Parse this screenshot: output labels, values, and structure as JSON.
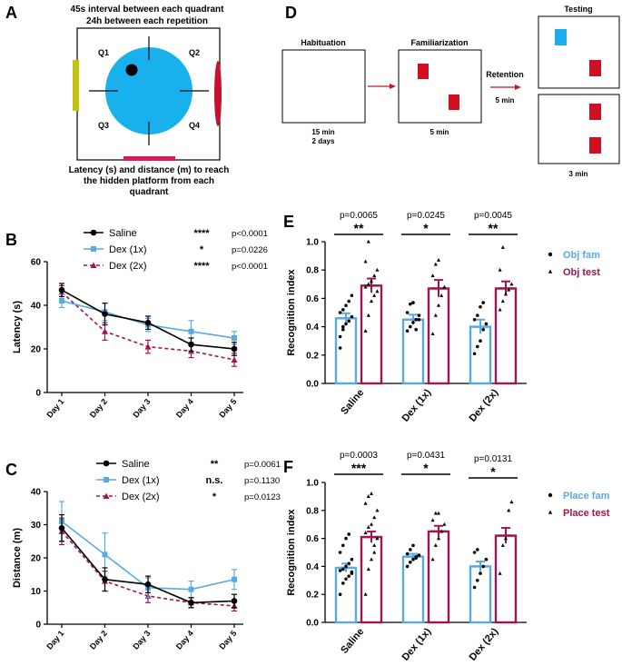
{
  "colors": {
    "saline": "#000000",
    "dex1": "#5aa9e6",
    "dex2": "#a0154f",
    "pool": "#19b0ee",
    "platform": "#000000",
    "cue_left": "#c2c40f",
    "cue_right": "#c8102e",
    "cue_bottom": "#d81b60",
    "object": "#d01020",
    "novel_object": "#1aaeee",
    "arrow": "#d01020"
  },
  "panelA": {
    "letter": "A",
    "title1": "45s interval between each quadrant",
    "title2": "24h between each repetition",
    "quadrants": [
      "Q1",
      "Q2",
      "Q3",
      "Q4"
    ],
    "caption1": "Latency (s) and distance (m) to reach",
    "caption2": "the hidden platform from each",
    "caption3": "quadrant"
  },
  "panelD": {
    "letter": "D",
    "habituation": "Habituation",
    "habituation_time1": "15 min",
    "habituation_time2": "2 days",
    "familiarization": "Familiarization",
    "familiarization_time": "5 min",
    "retention": "Retention",
    "retention_time": "5 min",
    "testing": "Testing",
    "testing_time": "3 min"
  },
  "chart_data": [
    {
      "id": "B",
      "letter": "B",
      "type": "line",
      "ylabel": "Latency (s)",
      "ylim": [
        0,
        60
      ],
      "yticks": [
        0,
        20,
        40,
        60
      ],
      "categories": [
        "Day 1",
        "Day 2",
        "Day 3",
        "Day 4",
        "Day 5"
      ],
      "series": [
        {
          "name": "Saline",
          "key": "saline",
          "values": [
            47,
            36,
            32,
            22,
            20
          ],
          "err": [
            3,
            5,
            3,
            3,
            3
          ]
        },
        {
          "name": "Dex (1x)",
          "key": "dex1",
          "values": [
            42,
            37,
            31,
            28,
            25
          ],
          "err": [
            3,
            4,
            3,
            5,
            3
          ]
        },
        {
          "name": "Dex (2x)",
          "key": "dex2",
          "values": [
            46,
            28,
            21,
            19,
            15
          ],
          "err": [
            3,
            4,
            3,
            3,
            3
          ]
        }
      ],
      "stats": [
        {
          "stars": "****",
          "p": "p<0.0001"
        },
        {
          "stars": "*",
          "p": "p=0.0226"
        },
        {
          "stars": "****",
          "p": "p<0.0001"
        }
      ]
    },
    {
      "id": "C",
      "letter": "C",
      "type": "line",
      "ylabel": "Distance (m)",
      "ylim": [
        0,
        40
      ],
      "yticks": [
        0,
        10,
        20,
        30,
        40
      ],
      "categories": [
        "Day 1",
        "Day 2",
        "Day 3",
        "Day 4",
        "Day 5"
      ],
      "series": [
        {
          "name": "Saline",
          "key": "saline",
          "values": [
            29,
            13.5,
            12,
            6.5,
            7
          ],
          "err": [
            4,
            3.5,
            2.5,
            1.5,
            2
          ]
        },
        {
          "name": "Dex (1x)",
          "key": "dex1",
          "values": [
            31,
            21,
            11,
            10.5,
            13.5
          ],
          "err": [
            6,
            6.5,
            3,
            2.5,
            3
          ]
        },
        {
          "name": "Dex (2x)",
          "key": "dex2",
          "values": [
            28,
            13,
            8.5,
            6.5,
            5.5
          ],
          "err": [
            4,
            3,
            2,
            1.5,
            1.5
          ]
        }
      ],
      "stats": [
        {
          "stars": "**",
          "p": "p=0.0061"
        },
        {
          "stars": "n.s.",
          "p": "p=0.1130"
        },
        {
          "stars": "*",
          "p": "p=0.0123"
        }
      ]
    },
    {
      "id": "E",
      "letter": "E",
      "type": "bar",
      "ylabel": "Recognition index",
      "ylim": [
        0,
        1.0
      ],
      "yticks": [
        0.0,
        0.2,
        0.4,
        0.6,
        0.8,
        1.0
      ],
      "categories": [
        "Saline",
        "Dex (1x)",
        "Dex (2x)"
      ],
      "legend": [
        "Obj fam",
        "Obj test"
      ],
      "fam": {
        "values": [
          0.46,
          0.45,
          0.4
        ],
        "err": [
          0.035,
          0.035,
          0.05
        ]
      },
      "test": {
        "values": [
          0.69,
          0.67,
          0.67
        ],
        "err": [
          0.05,
          0.06,
          0.05
        ]
      },
      "fam_points": [
        [
          0.33,
          0.38,
          0.42,
          0.44,
          0.47,
          0.5,
          0.52,
          0.55,
          0.58,
          0.62,
          0.25,
          0.4
        ],
        [
          0.37,
          0.4,
          0.43,
          0.45,
          0.48,
          0.5,
          0.56,
          0.57,
          0.38,
          0.45
        ],
        [
          0.21,
          0.26,
          0.3,
          0.38,
          0.42,
          0.45,
          0.48,
          0.54,
          0.57
        ]
      ],
      "test_points": [
        [
          0.37,
          0.48,
          0.58,
          0.62,
          0.65,
          0.68,
          0.7,
          0.72,
          0.76,
          0.8,
          0.86,
          1.0
        ],
        [
          0.35,
          0.48,
          0.55,
          0.62,
          0.68,
          0.76,
          0.84,
          0.87
        ],
        [
          0.52,
          0.58,
          0.63,
          0.66,
          0.7,
          0.8,
          0.96
        ]
      ],
      "sig": [
        {
          "p": "p=0.0065",
          "stars": "**"
        },
        {
          "p": "p=0.0245",
          "stars": "*"
        },
        {
          "p": "p=0.0045",
          "stars": "**"
        }
      ]
    },
    {
      "id": "F",
      "letter": "F",
      "type": "bar",
      "ylabel": "Recognition index",
      "ylim": [
        0,
        1.0
      ],
      "yticks": [
        0.0,
        0.2,
        0.4,
        0.6,
        0.8,
        1.0
      ],
      "categories": [
        "Saline",
        "Dex (1x)",
        "Dex (2x)"
      ],
      "legend": [
        "Place fam",
        "Place test"
      ],
      "fam": {
        "values": [
          0.39,
          0.47,
          0.4
        ],
        "err": [
          0.03,
          0.02,
          0.035
        ]
      },
      "test": {
        "values": [
          0.61,
          0.65,
          0.62
        ],
        "err": [
          0.04,
          0.04,
          0.055
        ]
      },
      "fam_points": [
        [
          0.2,
          0.28,
          0.31,
          0.33,
          0.35,
          0.37,
          0.38,
          0.4,
          0.42,
          0.45,
          0.5,
          0.55,
          0.6,
          0.63,
          0.36
        ],
        [
          0.4,
          0.43,
          0.45,
          0.47,
          0.48,
          0.49,
          0.52,
          0.55,
          0.46
        ],
        [
          0.25,
          0.3,
          0.35,
          0.4,
          0.45,
          0.5,
          0.52
        ]
      ],
      "test_points": [
        [
          0.2,
          0.38,
          0.45,
          0.55,
          0.6,
          0.64,
          0.68,
          0.7,
          0.75,
          0.8,
          0.85,
          0.9,
          0.92,
          0.5
        ],
        [
          0.45,
          0.55,
          0.6,
          0.65,
          0.7,
          0.73,
          0.78,
          0.78
        ],
        [
          0.35,
          0.55,
          0.6,
          0.8,
          0.86
        ]
      ],
      "sig": [
        {
          "p": "p=0.0003",
          "stars": "***"
        },
        {
          "p": "p=0.0431",
          "stars": "*"
        },
        {
          "p": "p=0.0131",
          "stars": "*"
        }
      ]
    }
  ]
}
